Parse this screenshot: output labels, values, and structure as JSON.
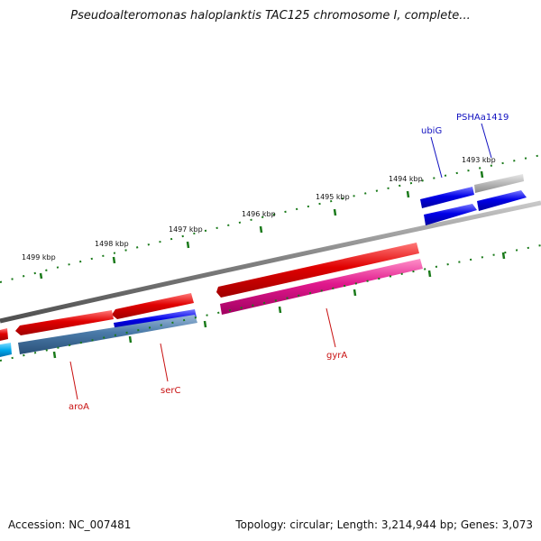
{
  "title": "Pseudoalteromonas haloplanktis TAC125 chromosome I, complete...",
  "footer": {
    "accession": "Accession: NC_007481",
    "topology": "Topology: circular; Length: 3,214,944 bp; Genes: 3,073"
  },
  "scale_labels": [
    "1493 kbp",
    "1494 kbp",
    "1495 kbp",
    "1496 kbp",
    "1497 kbp",
    "1498 kbp",
    "1499 kbp"
  ],
  "gene_labels": [
    {
      "name": "ubiG",
      "color": "#1010c0"
    },
    {
      "name": "PSHAa1419",
      "color": "#1010c0"
    },
    {
      "name": "gyrA",
      "color": "#c81010"
    },
    {
      "name": "serC",
      "color": "#c81010"
    },
    {
      "name": "aroA",
      "color": "#c81010"
    }
  ],
  "colors": {
    "backbone": "#808080",
    "tick": "#1a7a1a",
    "red_gene": "#e00000",
    "blue_gene": "#0000e8",
    "pink_gene": "#e0188c",
    "steel_gene": "#4a7aa8",
    "gray_gene": "#b8b8b8",
    "cyan_gene": "#00aaee"
  }
}
